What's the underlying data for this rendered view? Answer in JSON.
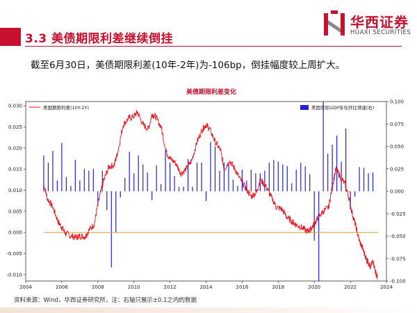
{
  "header": {
    "section_title": "3.3  美债期限利差继续倒挂",
    "logo_cn": "华西证券",
    "logo_en": "HUAXI SECURITIES"
  },
  "summary_text": "截至6月30日，美债期限利差(10年-2年)为-106bp，倒挂幅度较上周扩大。",
  "footer_text": "资料来源：Wind，华西证券研究所，注：右轴只展示±0.1之内的数据",
  "colors": {
    "brand": "#c8102e",
    "spread_line": "#e8141c",
    "gdp_bars": "#2020d8",
    "zero_line": "#d9a21b"
  },
  "chart_data": {
    "type": "line+bar",
    "title": "美债期限利差变化",
    "x_ticks": [
      "2004",
      "2006",
      "2008",
      "2010",
      "2012",
      "2014",
      "2016",
      "2018",
      "2020",
      "2022",
      "2024"
    ],
    "xlim": [
      2004,
      2024
    ],
    "left_axis": {
      "ylim": [
        -0.0115,
        0.031
      ],
      "ticks": [
        "0.030",
        "0.025",
        "0.020",
        "0.015",
        "0.010",
        "0.005",
        "0.000",
        "-0.005",
        "-0.010"
      ]
    },
    "right_axis": {
      "ylim": [
        -0.1,
        0.1
      ],
      "ticks": [
        "0.100",
        "0.075",
        "0.050",
        "0.025",
        "0.000",
        "-0.025",
        "-0.050",
        "-0.075",
        "-0.100"
      ]
    },
    "legend_left": "美国期限利差(10Y-2Y)",
    "legend_right": "美国实际GDP年化环比增速(右)",
    "zero_line_value": 0.0,
    "line_series": {
      "name": "美国期限利差(10Y-2Y)",
      "points": [
        [
          2005.0,
          0.0115
        ],
        [
          2005.2,
          0.008
        ],
        [
          2005.5,
          0.006
        ],
        [
          2005.8,
          0.0025
        ],
        [
          2006.0,
          0.0012
        ],
        [
          2006.2,
          -0.0002
        ],
        [
          2006.5,
          -0.0008
        ],
        [
          2006.8,
          -0.0012
        ],
        [
          2007.0,
          -0.0008
        ],
        [
          2007.3,
          -0.001
        ],
        [
          2007.5,
          0.0005
        ],
        [
          2007.8,
          0.002
        ],
        [
          2008.0,
          0.0065
        ],
        [
          2008.3,
          0.012
        ],
        [
          2008.6,
          0.0155
        ],
        [
          2008.9,
          0.016
        ],
        [
          2009.1,
          0.019
        ],
        [
          2009.4,
          0.0255
        ],
        [
          2009.7,
          0.027
        ],
        [
          2010.0,
          0.0275
        ],
        [
          2010.2,
          0.0285
        ],
        [
          2010.5,
          0.0255
        ],
        [
          2010.8,
          0.0245
        ],
        [
          2011.0,
          0.028
        ],
        [
          2011.2,
          0.0275
        ],
        [
          2011.5,
          0.025
        ],
        [
          2011.8,
          0.019
        ],
        [
          2012.0,
          0.0175
        ],
        [
          2012.3,
          0.0165
        ],
        [
          2012.6,
          0.014
        ],
        [
          2012.9,
          0.015
        ],
        [
          2013.2,
          0.017
        ],
        [
          2013.5,
          0.0215
        ],
        [
          2013.8,
          0.0245
        ],
        [
          2014.0,
          0.0255
        ],
        [
          2014.2,
          0.0245
        ],
        [
          2014.5,
          0.0215
        ],
        [
          2014.8,
          0.0195
        ],
        [
          2015.0,
          0.015
        ],
        [
          2015.3,
          0.017
        ],
        [
          2015.6,
          0.015
        ],
        [
          2015.9,
          0.0125
        ],
        [
          2016.2,
          0.0105
        ],
        [
          2016.5,
          0.0085
        ],
        [
          2016.8,
          0.0095
        ],
        [
          2017.0,
          0.0125
        ],
        [
          2017.3,
          0.011
        ],
        [
          2017.6,
          0.0085
        ],
        [
          2017.9,
          0.006
        ],
        [
          2018.2,
          0.0055
        ],
        [
          2018.5,
          0.0035
        ],
        [
          2018.8,
          0.0025
        ],
        [
          2019.0,
          0.0018
        ],
        [
          2019.3,
          0.0012
        ],
        [
          2019.6,
          0.0002
        ],
        [
          2019.8,
          0.0008
        ],
        [
          2020.0,
          0.002
        ],
        [
          2020.2,
          0.0035
        ],
        [
          2020.5,
          0.005
        ],
        [
          2020.8,
          0.006
        ],
        [
          2021.0,
          0.011
        ],
        [
          2021.2,
          0.015
        ],
        [
          2021.4,
          0.0135
        ],
        [
          2021.7,
          0.0115
        ],
        [
          2021.9,
          0.0085
        ],
        [
          2022.1,
          0.0045
        ],
        [
          2022.3,
          0.0015
        ],
        [
          2022.5,
          -0.002
        ],
        [
          2022.7,
          -0.004
        ],
        [
          2022.9,
          -0.0065
        ],
        [
          2023.0,
          -0.007
        ],
        [
          2023.1,
          -0.0085
        ],
        [
          2023.25,
          -0.0065
        ],
        [
          2023.4,
          -0.0095
        ],
        [
          2023.5,
          -0.0106
        ]
      ]
    },
    "bar_series": {
      "name": "美国实际GDP年化环比增速(右)",
      "points": [
        [
          2005.0,
          0.04
        ],
        [
          2005.25,
          0.032
        ],
        [
          2005.5,
          0.045
        ],
        [
          2005.75,
          0.012
        ],
        [
          2006.0,
          0.054
        ],
        [
          2006.25,
          0.016
        ],
        [
          2006.5,
          0.006
        ],
        [
          2006.75,
          0.035
        ],
        [
          2007.0,
          0.012
        ],
        [
          2007.25,
          0.025
        ],
        [
          2007.5,
          0.023
        ],
        [
          2007.75,
          0.025
        ],
        [
          2008.0,
          -0.016
        ],
        [
          2008.25,
          0.023
        ],
        [
          2008.5,
          -0.021
        ],
        [
          2008.75,
          -0.085
        ],
        [
          2009.0,
          -0.046
        ],
        [
          2009.25,
          -0.007
        ],
        [
          2009.5,
          0.015
        ],
        [
          2009.75,
          0.044
        ],
        [
          2010.0,
          0.02
        ],
        [
          2010.25,
          0.04
        ],
        [
          2010.5,
          0.03
        ],
        [
          2010.75,
          0.021
        ],
        [
          2011.0,
          -0.01
        ],
        [
          2011.25,
          0.029
        ],
        [
          2011.5,
          0.008
        ],
        [
          2011.75,
          0.046
        ],
        [
          2012.0,
          0.032
        ],
        [
          2012.25,
          0.017
        ],
        [
          2012.5,
          0.005
        ],
        [
          2012.75,
          0.005
        ],
        [
          2013.0,
          0.036
        ],
        [
          2013.25,
          0.005
        ],
        [
          2013.5,
          0.032
        ],
        [
          2013.75,
          0.032
        ],
        [
          2014.0,
          -0.011
        ],
        [
          2014.25,
          0.055
        ],
        [
          2014.5,
          0.05
        ],
        [
          2014.75,
          0.023
        ],
        [
          2015.0,
          0.032
        ],
        [
          2015.25,
          0.03
        ],
        [
          2015.5,
          0.013
        ],
        [
          2015.75,
          0.006
        ],
        [
          2016.0,
          0.024
        ],
        [
          2016.25,
          0.012
        ],
        [
          2016.5,
          0.024
        ],
        [
          2016.75,
          0.02
        ],
        [
          2017.0,
          0.02
        ],
        [
          2017.25,
          0.023
        ],
        [
          2017.5,
          0.032
        ],
        [
          2017.75,
          0.035
        ],
        [
          2018.0,
          0.033
        ],
        [
          2018.25,
          0.03
        ],
        [
          2018.5,
          0.028
        ],
        [
          2018.75,
          0.009
        ],
        [
          2019.0,
          0.024
        ],
        [
          2019.25,
          0.032
        ],
        [
          2019.5,
          0.028
        ],
        [
          2019.75,
          0.019
        ],
        [
          2020.0,
          -0.055
        ],
        [
          2020.25,
          -0.1
        ],
        [
          2020.5,
          0.1
        ],
        [
          2020.75,
          0.042
        ],
        [
          2021.0,
          0.052
        ],
        [
          2021.25,
          0.062
        ],
        [
          2021.5,
          0.033
        ],
        [
          2021.75,
          0.07
        ],
        [
          2022.0,
          -0.02
        ],
        [
          2022.25,
          -0.006
        ],
        [
          2022.5,
          0.027
        ],
        [
          2022.75,
          0.026
        ],
        [
          2023.0,
          0.02
        ],
        [
          2023.25,
          0.021
        ]
      ]
    }
  }
}
